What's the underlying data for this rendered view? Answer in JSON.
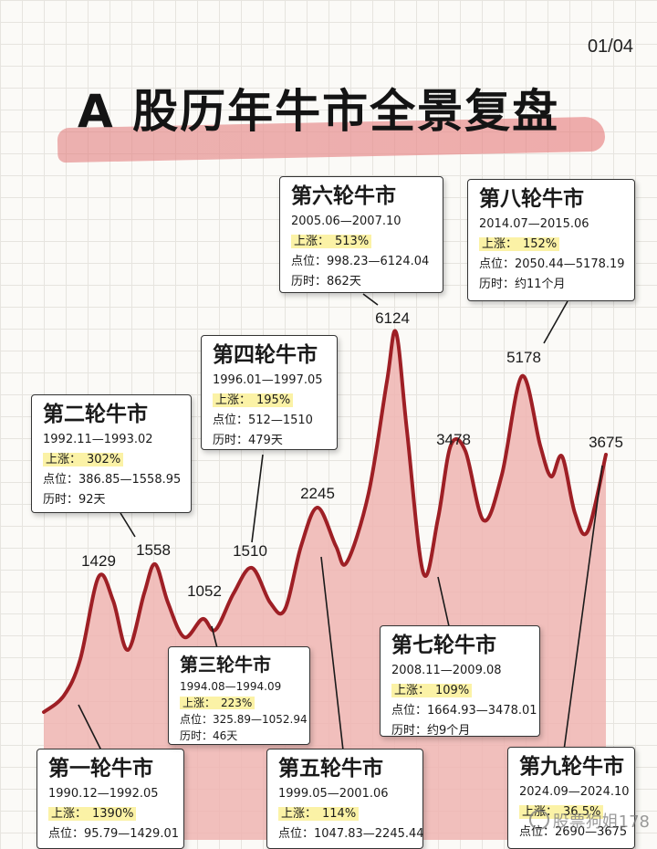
{
  "page_number": "01/04",
  "title": "A 股历年牛市全景复盘",
  "watermark": "股票狗姐178",
  "colors": {
    "line": "#9e1f25",
    "fill": "#efb4b2",
    "highlight": "#fbf2a6"
  },
  "chart_data": {
    "type": "area",
    "title": "A 股历年牛市全景复盘",
    "xlabel": "",
    "ylabel": "",
    "peaks": [
      {
        "label": "1429",
        "value": 1429
      },
      {
        "label": "1558",
        "value": 1558
      },
      {
        "label": "1052",
        "value": 1052
      },
      {
        "label": "1510",
        "value": 1510
      },
      {
        "label": "2245",
        "value": 2245
      },
      {
        "label": "6124",
        "value": 6124
      },
      {
        "label": "3478",
        "value": 3478
      },
      {
        "label": "5178",
        "value": 5178
      },
      {
        "label": "3675",
        "value": 3675
      }
    ]
  },
  "cards": [
    {
      "title": "第一轮牛市",
      "period": "1990.12—1992.05",
      "gain_label": "上涨：",
      "gain": "1390%",
      "points_label": "点位：",
      "points": "95.79—1429.01",
      "duration_label": "",
      "duration": ""
    },
    {
      "title": "第二轮牛市",
      "period": "1992.11—1993.02",
      "gain_label": "上涨：",
      "gain": "302%",
      "points_label": "点位：",
      "points": "386.85—1558.95",
      "duration_label": "历时：",
      "duration": "92天"
    },
    {
      "title": "第三轮牛市",
      "period": "1994.08—1994.09",
      "gain_label": "上涨：",
      "gain": "223%",
      "points_label": "点位：",
      "points": "325.89—1052.94",
      "duration_label": "历时：",
      "duration": "46天"
    },
    {
      "title": "第四轮牛市",
      "period": "1996.01—1997.05",
      "gain_label": "上涨：",
      "gain": "195%",
      "points_label": "点位：",
      "points": "512—1510",
      "duration_label": "历时：",
      "duration": "479天"
    },
    {
      "title": "第五轮牛市",
      "period": "1999.05—2001.06",
      "gain_label": "上涨：",
      "gain": "114%",
      "points_label": "点位：",
      "points": "1047.83—2245.44",
      "duration_label": "",
      "duration": ""
    },
    {
      "title": "第六轮牛市",
      "period": "2005.06—2007.10",
      "gain_label": "上涨：",
      "gain": "513%",
      "points_label": "点位：",
      "points": "998.23—6124.04",
      "duration_label": "历时：",
      "duration": "862天"
    },
    {
      "title": "第七轮牛市",
      "period": "2008.11—2009.08",
      "gain_label": "上涨：",
      "gain": "109%",
      "points_label": "点位：",
      "points": "1664.93—3478.01",
      "duration_label": "历时：",
      "duration": "约9个月"
    },
    {
      "title": "第八轮牛市",
      "period": "2014.07—2015.06",
      "gain_label": "上涨：",
      "gain": "152%",
      "points_label": "点位：",
      "points": "2050.44—5178.19",
      "duration_label": "历时：",
      "duration": "约11个月"
    },
    {
      "title": "第九轮牛市",
      "period": "2024.09—2024.10",
      "gain_label": "上涨：",
      "gain": "36.5%",
      "points_label": "点位：",
      "points": "2690—3675",
      "duration_label": "",
      "duration": ""
    }
  ]
}
